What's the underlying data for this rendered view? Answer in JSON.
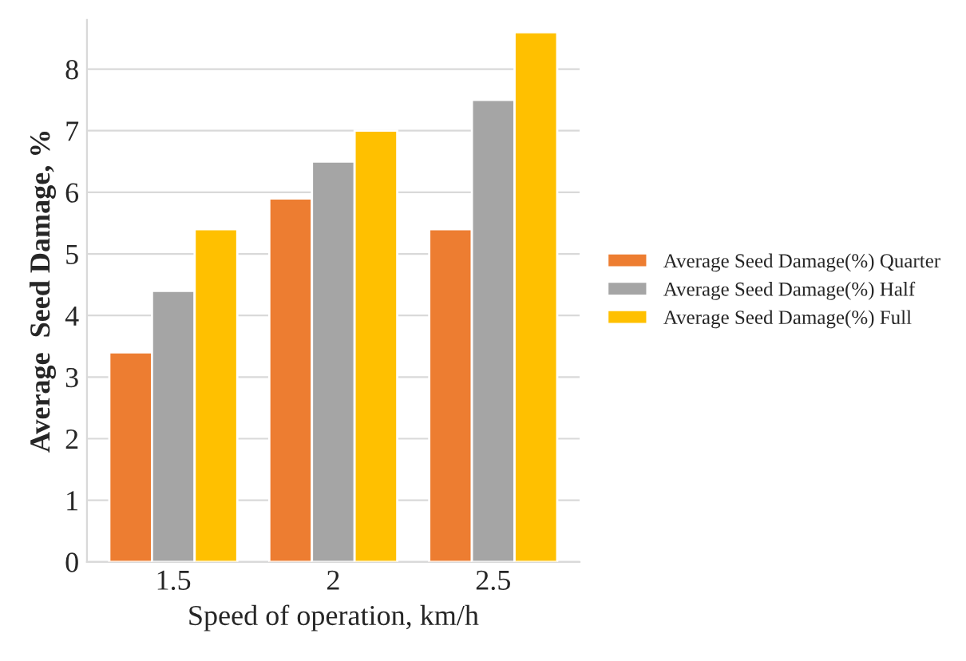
{
  "chart_data": {
    "type": "bar",
    "xlabel": "Speed of operation, km/h",
    "ylabel": "Average  Seed Damage, %",
    "categories": [
      "1.5",
      "2",
      "2.5"
    ],
    "series": [
      {
        "name": "Average Seed Damage(%) Quarter",
        "color": "#ed7d31",
        "values": [
          3.4,
          5.9,
          5.4
        ]
      },
      {
        "name": "Average Seed Damage(%) Half",
        "color": "#a5a5a5",
        "values": [
          4.4,
          6.5,
          7.5
        ]
      },
      {
        "name": "Average Seed Damage(%) Full",
        "color": "#ffc000",
        "values": [
          5.4,
          7.0,
          8.6
        ]
      }
    ],
    "ylim": [
      0,
      8.8
    ],
    "yticks": [
      0,
      1,
      2,
      3,
      4,
      5,
      6,
      7,
      8
    ],
    "grid": "y",
    "legend": "right"
  }
}
